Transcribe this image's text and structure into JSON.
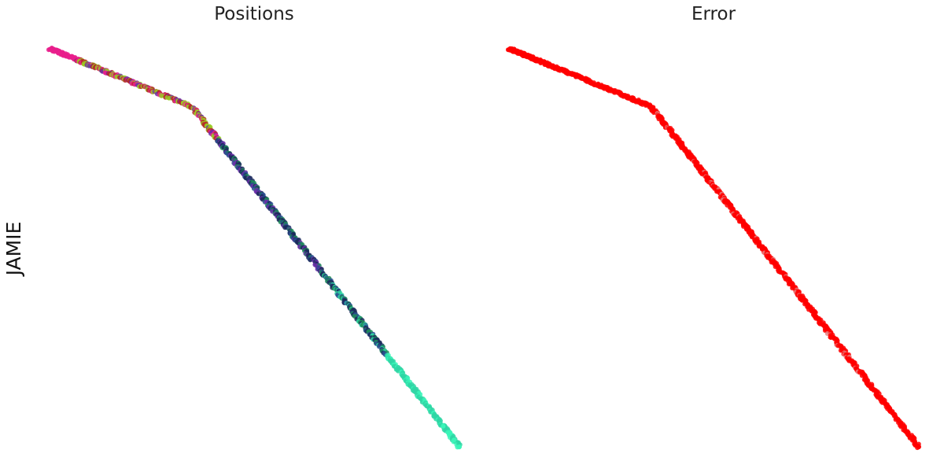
{
  "figure": {
    "ylabel": "JAMIE"
  },
  "chart_data": [
    {
      "type": "scatter",
      "title": "Positions",
      "ylabel": "JAMIE",
      "axes_visible": false,
      "grid": false,
      "legend": "none",
      "color_by": "position",
      "colormap": [
        "#e91e8c",
        "#b5272a",
        "#9acd22",
        "#6b2fa8",
        "#1b2a5c",
        "#2a4d8f",
        "#1f8a5a",
        "#2fd6a4",
        "#3af5b8"
      ],
      "xlim": [
        0,
        1
      ],
      "ylim": [
        0,
        1
      ],
      "path": [
        {
          "x": 0.0,
          "y": 1.0
        },
        {
          "x": 0.345,
          "y": 0.855
        },
        {
          "x": 0.365,
          "y": 0.83
        },
        {
          "x": 1.0,
          "y": 0.0
        }
      ]
    },
    {
      "type": "scatter",
      "title": "Error",
      "axes_visible": false,
      "grid": false,
      "legend": "none",
      "color_by": "error",
      "colormap": [
        "#ff0000",
        "#e88080"
      ],
      "xlim": [
        0,
        1
      ],
      "ylim": [
        0,
        1
      ],
      "path": [
        {
          "x": 0.0,
          "y": 1.0
        },
        {
          "x": 0.345,
          "y": 0.855
        },
        {
          "x": 0.365,
          "y": 0.83
        },
        {
          "x": 1.0,
          "y": 0.0
        }
      ]
    }
  ]
}
